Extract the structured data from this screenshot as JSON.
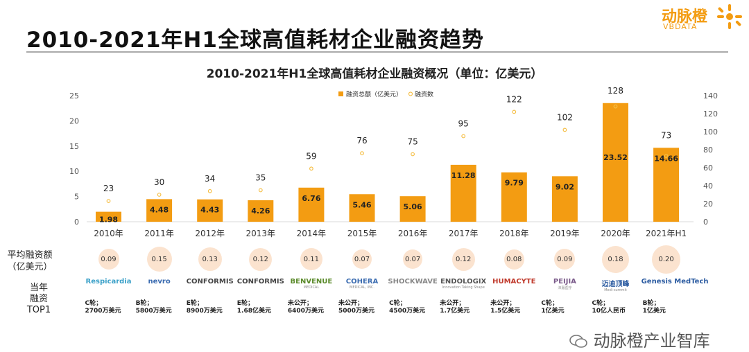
{
  "brand": {
    "name": "动脉橙",
    "sub": "VBDATA"
  },
  "page_title": "2010-2021年H1全球高值耗材企业融资趋势",
  "chart_data": {
    "type": "bar",
    "title": "2010-2021年H1全球高值耗材企业融资概况（单位：亿美元）",
    "categories": [
      "2010年",
      "2011年",
      "2012年",
      "2013年",
      "2014年",
      "2015年",
      "2016年",
      "2017年",
      "2018年",
      "2019年",
      "2020年",
      "2021年H1"
    ],
    "series": [
      {
        "name": "融资总额（亿美元）",
        "type": "bar",
        "axis": "left",
        "color": "#f39c12",
        "values": [
          1.98,
          4.48,
          4.43,
          4.26,
          6.76,
          5.46,
          5.06,
          11.28,
          9.79,
          9.02,
          23.52,
          14.66
        ]
      },
      {
        "name": "融资数",
        "type": "scatter",
        "axis": "right",
        "color": "#f5c04a",
        "values": [
          23,
          30,
          34,
          35,
          59,
          76,
          75,
          95,
          122,
          102,
          128,
          73
        ]
      }
    ],
    "ylim_left": [
      0,
      25
    ],
    "yticks_left": [
      0,
      5,
      10,
      15,
      20,
      25
    ],
    "ylim_right": [
      0,
      140
    ],
    "yticks_right": [
      0,
      20,
      40,
      60,
      80,
      100,
      120,
      140
    ],
    "legend": "top-center"
  },
  "avg_row": {
    "label_line1": "平均融资额",
    "label_line2": "（亿美元）",
    "values": [
      "0.09",
      "0.15",
      "0.13",
      "0.12",
      "0.11",
      "0.07",
      "0.07",
      "0.12",
      "0.08",
      "0.09",
      "0.18",
      "0.20"
    ]
  },
  "top1_row": {
    "label_line1": "当年",
    "label_line2": "融资",
    "label_line3": "TOP1",
    "logos": [
      {
        "name": "Respicardia",
        "sub": "",
        "color": "#3aa0c8"
      },
      {
        "name": "nevro",
        "sub": "",
        "color": "#3a6bb0"
      },
      {
        "name": "CONFORMIS",
        "sub": "",
        "color": "#444444"
      },
      {
        "name": "CONFORMIS",
        "sub": "",
        "color": "#444444"
      },
      {
        "name": "BENVENUE",
        "sub": "MEDICAL",
        "color": "#5a8a2a"
      },
      {
        "name": "COHERA",
        "sub": "MEDICAL, INC.",
        "color": "#3a6bb0"
      },
      {
        "name": "SHOCKWAVE",
        "sub": "",
        "color": "#888888"
      },
      {
        "name": "ENDOLOGIX",
        "sub": "Innovation Taking Shape",
        "color": "#555555"
      },
      {
        "name": "HUMACYTE",
        "sub": "",
        "color": "#c0392b"
      },
      {
        "name": "PEIJIA",
        "sub": "沛嘉医疗",
        "color": "#7a5a8a"
      },
      {
        "name": "迈迪顶峰",
        "sub": "Medi-summit",
        "color": "#2a5aa0"
      },
      {
        "name": "Genesis MedTech",
        "sub": "",
        "color": "#2a5aa0"
      }
    ],
    "rounds": [
      [
        "C轮；",
        "2700万美元"
      ],
      [
        "B轮；",
        "5800万美元"
      ],
      [
        "E轮；",
        "8900万美元"
      ],
      [
        "E轮；",
        "1.68亿美元"
      ],
      [
        "未公开；",
        "6400万美元"
      ],
      [
        "未公开；",
        "5000万美元"
      ],
      [
        "C轮；",
        "4500万美元"
      ],
      [
        "未公开；",
        "1.7亿美元"
      ],
      [
        "未公开；",
        "1.5亿美元"
      ],
      [
        "C轮；",
        "1亿美元"
      ],
      [
        "C轮；",
        "10亿人民币"
      ],
      [
        "B轮；",
        "1亿美元"
      ]
    ]
  },
  "footer": "动脉橙产业智库"
}
